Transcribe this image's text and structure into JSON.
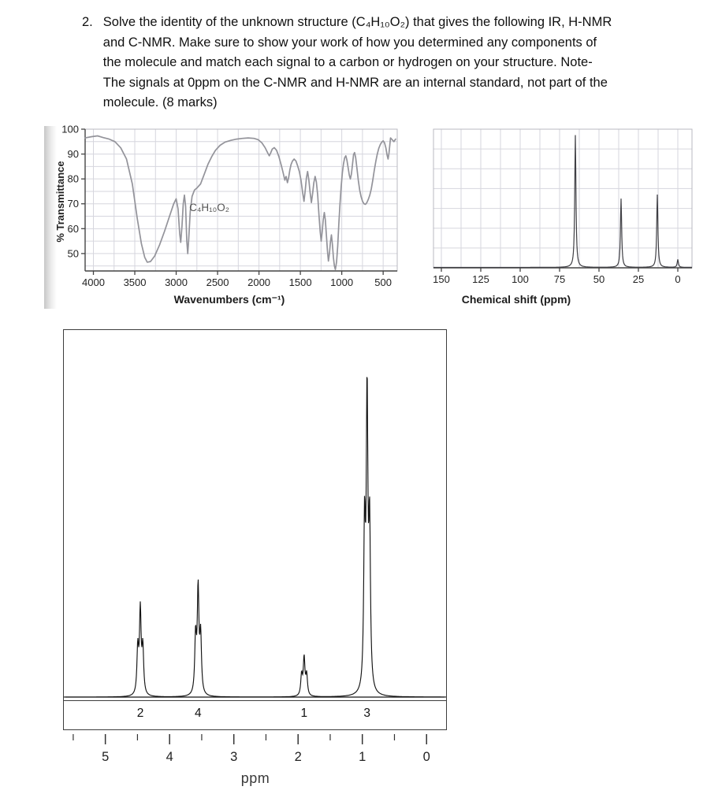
{
  "question": {
    "number": "2.",
    "lines": [
      "Solve the identity of the unknown structure (C₄H₁₀O₂) that gives the following IR, H-NMR",
      "and C-NMR. Make sure to show your work of how you determined any components of",
      "the molecule and match each signal to a carbon or hydrogen on your structure. Note-",
      "The signals at 0ppm on the C-NMR and H-NMR are an internal standard, not part of the",
      "molecule. (8 marks)"
    ]
  },
  "colors": {
    "grid": "#d6d6de",
    "axis": "#444444",
    "ir_curve": "#93939a",
    "cnmr_ink": "#3f3f44",
    "hnmr_ink": "#141414"
  },
  "chart_data": [
    {
      "id": "ir",
      "type": "line",
      "xlabel": "Wavenumbers (cm⁻¹)",
      "ylabel": "% Transmittance",
      "annotation": "C₄H₁₀O₂",
      "x_ticks": [
        4000,
        3500,
        3000,
        2500,
        2000,
        1500,
        1000,
        500
      ],
      "y_ticks": [
        100,
        90,
        80,
        70,
        60,
        50
      ],
      "xlim": [
        4100,
        330
      ],
      "ylim": [
        43,
        100
      ],
      "grid": true,
      "curve_points": [
        [
          4100,
          96.5
        ],
        [
          4020,
          97
        ],
        [
          3950,
          97.3
        ],
        [
          3880,
          96.6
        ],
        [
          3810,
          96
        ],
        [
          3740,
          95
        ],
        [
          3670,
          92.5
        ],
        [
          3600,
          88
        ],
        [
          3530,
          78
        ],
        [
          3470,
          64
        ],
        [
          3420,
          54
        ],
        [
          3380,
          48.5
        ],
        [
          3350,
          46.5
        ],
        [
          3310,
          46.8
        ],
        [
          3260,
          49
        ],
        [
          3200,
          53.5
        ],
        [
          3140,
          59
        ],
        [
          3080,
          65
        ],
        [
          3030,
          70
        ],
        [
          3000,
          72
        ],
        [
          2978,
          68
        ],
        [
          2958,
          58
        ],
        [
          2945,
          54.5
        ],
        [
          2930,
          61
        ],
        [
          2915,
          70
        ],
        [
          2900,
          73.5
        ],
        [
          2886,
          69
        ],
        [
          2872,
          55
        ],
        [
          2860,
          50
        ],
        [
          2848,
          56
        ],
        [
          2830,
          67
        ],
        [
          2808,
          73
        ],
        [
          2780,
          75.5
        ],
        [
          2745,
          76.5
        ],
        [
          2705,
          78
        ],
        [
          2660,
          82
        ],
        [
          2615,
          86
        ],
        [
          2570,
          89
        ],
        [
          2525,
          91.5
        ],
        [
          2470,
          93.5
        ],
        [
          2410,
          94.8
        ],
        [
          2340,
          95.5
        ],
        [
          2270,
          96
        ],
        [
          2200,
          96.3
        ],
        [
          2130,
          96.5
        ],
        [
          2060,
          96.3
        ],
        [
          2010,
          95.8
        ],
        [
          1965,
          94.5
        ],
        [
          1925,
          92.5
        ],
        [
          1895,
          90.5
        ],
        [
          1875,
          89.3
        ],
        [
          1858,
          90.5
        ],
        [
          1840,
          92
        ],
        [
          1815,
          92.6
        ],
        [
          1788,
          91.5
        ],
        [
          1760,
          89
        ],
        [
          1730,
          85.5
        ],
        [
          1705,
          82
        ],
        [
          1688,
          79.5
        ],
        [
          1672,
          81
        ],
        [
          1656,
          78.5
        ],
        [
          1642,
          80.5
        ],
        [
          1628,
          83.5
        ],
        [
          1612,
          85.8
        ],
        [
          1595,
          87.2
        ],
        [
          1575,
          88
        ],
        [
          1553,
          87.2
        ],
        [
          1532,
          85.2
        ],
        [
          1512,
          83
        ],
        [
          1492,
          79.5
        ],
        [
          1472,
          74.5
        ],
        [
          1456,
          71
        ],
        [
          1441,
          75.5
        ],
        [
          1427,
          80.5
        ],
        [
          1412,
          83
        ],
        [
          1397,
          79.5
        ],
        [
          1382,
          74.5
        ],
        [
          1367,
          70.5
        ],
        [
          1352,
          74
        ],
        [
          1337,
          78.5
        ],
        [
          1322,
          81
        ],
        [
          1307,
          78.8
        ],
        [
          1291,
          73.5
        ],
        [
          1276,
          66
        ],
        [
          1261,
          59
        ],
        [
          1249,
          55
        ],
        [
          1237,
          58.5
        ],
        [
          1224,
          63.5
        ],
        [
          1211,
          66.5
        ],
        [
          1198,
          63.5
        ],
        [
          1186,
          57.5
        ],
        [
          1173,
          51
        ],
        [
          1161,
          47
        ],
        [
          1149,
          50
        ],
        [
          1137,
          54.5
        ],
        [
          1125,
          57.5
        ],
        [
          1113,
          53.5
        ],
        [
          1101,
          48.5
        ],
        [
          1089,
          45
        ],
        [
          1077,
          43.6
        ],
        [
          1063,
          46.5
        ],
        [
          1049,
          53
        ],
        [
          1035,
          62
        ],
        [
          1021,
          70
        ],
        [
          1007,
          77
        ],
        [
          993,
          82.5
        ],
        [
          979,
          86
        ],
        [
          965,
          88.5
        ],
        [
          951,
          89.3
        ],
        [
          937,
          87.5
        ],
        [
          923,
          84.5
        ],
        [
          909,
          81.5
        ],
        [
          896,
          80
        ],
        [
          883,
          82
        ],
        [
          870,
          86
        ],
        [
          857,
          89.8
        ],
        [
          845,
          90.6
        ],
        [
          832,
          88.5
        ],
        [
          817,
          84.5
        ],
        [
          800,
          79.5
        ],
        [
          783,
          75.5
        ],
        [
          766,
          72.8
        ],
        [
          749,
          71
        ],
        [
          732,
          70
        ],
        [
          714,
          69.8
        ],
        [
          697,
          70.5
        ],
        [
          679,
          71.8
        ],
        [
          661,
          73.5
        ],
        [
          643,
          76
        ],
        [
          625,
          79.5
        ],
        [
          607,
          83.5
        ],
        [
          589,
          87
        ],
        [
          571,
          90
        ],
        [
          553,
          92.3
        ],
        [
          535,
          93.8
        ],
        [
          517,
          94.8
        ],
        [
          499,
          95.3
        ],
        [
          483,
          94.5
        ],
        [
          467,
          92.5
        ],
        [
          452,
          89.5
        ],
        [
          440,
          88
        ],
        [
          429,
          90.5
        ],
        [
          419,
          94
        ],
        [
          411,
          96.5
        ],
        [
          370,
          95
        ],
        [
          350,
          96
        ]
      ]
    },
    {
      "id": "cnmr",
      "type": "line",
      "xlabel": "Chemical shift (ppm)",
      "x_ticks": [
        150,
        125,
        100,
        75,
        50,
        25,
        0
      ],
      "xlim": [
        155,
        -9
      ],
      "grid": true,
      "peaks": [
        {
          "ppm": 65,
          "height": 1.0
        },
        {
          "ppm": 36,
          "height": 0.52
        },
        {
          "ppm": 13,
          "height": 0.55
        },
        {
          "ppm": 0,
          "height": 0.06
        }
      ]
    },
    {
      "id": "hnmr",
      "type": "line",
      "xlabel": "ppm",
      "x_ticks": [
        5,
        4,
        3,
        2,
        1,
        0
      ],
      "xlim": [
        5.64,
        -0.31
      ],
      "grid": false,
      "peaks": [
        {
          "ppm": 4.45,
          "height": 0.29,
          "integration": "2"
        },
        {
          "ppm": 3.55,
          "height": 0.36,
          "integration": "4"
        },
        {
          "ppm": 1.9,
          "height": 0.13,
          "integration": "1"
        },
        {
          "ppm": 0.92,
          "height": 1.0,
          "integration": "3"
        }
      ]
    }
  ]
}
